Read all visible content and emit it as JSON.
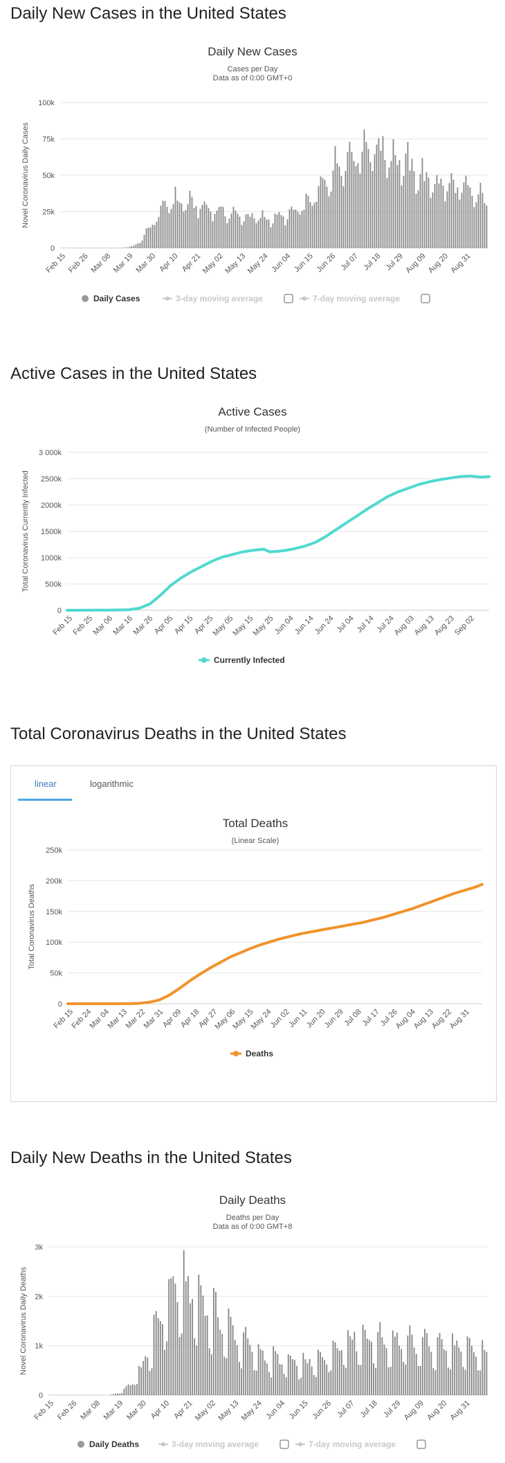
{
  "colors": {
    "bar": "#888888",
    "teal": "#4fd9d0",
    "orange": "#f0932b",
    "grid": "#e6e6e6",
    "axis": "#ccc",
    "disabled": "#c8c8c8",
    "tab_active": "#3b7bbf"
  },
  "icons": {
    "legend_marker": "circle",
    "checkbox": "checkbox"
  },
  "sections": {
    "daily_cases": "Daily New Cases in the United States",
    "active_cases": "Active Cases in the United States",
    "total_deaths": "Total Coronavirus Deaths in the United States",
    "daily_deaths": "Daily New Deaths in the United States"
  },
  "tabs": {
    "linear": "linear",
    "log": "logarithmic"
  },
  "chart_data": [
    {
      "id": "daily_cases",
      "type": "bar",
      "title": "Daily New Cases",
      "subtitle1": "Cases per Day",
      "subtitle2": "Data as of 0:00 GMT+0",
      "ylabel": "Novel Coronavirus Daily Cases",
      "ylim": [
        0,
        100000
      ],
      "yticks": [
        0,
        25000,
        50000,
        75000,
        100000
      ],
      "ytick_labels": [
        "0",
        "25k",
        "50k",
        "75k",
        "100k"
      ],
      "xticks": [
        "Feb 15",
        "Feb 26",
        "Mar 08",
        "Mar 19",
        "Mar 30",
        "Apr 10",
        "Apr 21",
        "May 02",
        "May 13",
        "May 24",
        "Jun 04",
        "Jun 15",
        "Jun 26",
        "Jul 07",
        "Jul 18",
        "Jul 29",
        "Aug 09",
        "Aug 20",
        "Aug 31"
      ],
      "legend": [
        "Daily Cases",
        "3-day moving average",
        "7-day moving average"
      ],
      "knots": [
        [
          0,
          0
        ],
        [
          28,
          0
        ],
        [
          31,
          300
        ],
        [
          34,
          1000
        ],
        [
          37,
          3000
        ],
        [
          40,
          8000
        ],
        [
          43,
          15000
        ],
        [
          46,
          20000
        ],
        [
          49,
          27000
        ],
        [
          52,
          31000
        ],
        [
          55,
          32000
        ],
        [
          58,
          31000
        ],
        [
          61,
          30000
        ],
        [
          64,
          29000
        ],
        [
          67,
          28000
        ],
        [
          70,
          27000
        ],
        [
          73,
          26000
        ],
        [
          76,
          25000
        ],
        [
          79,
          24000
        ],
        [
          82,
          23000
        ],
        [
          85,
          22000
        ],
        [
          88,
          21500
        ],
        [
          91,
          21000
        ],
        [
          94,
          20500
        ],
        [
          97,
          20000
        ],
        [
          100,
          20000
        ],
        [
          103,
          20500
        ],
        [
          106,
          21000
        ],
        [
          109,
          22000
        ],
        [
          112,
          24000
        ],
        [
          115,
          26000
        ],
        [
          118,
          29000
        ],
        [
          121,
          33000
        ],
        [
          124,
          38000
        ],
        [
          127,
          44000
        ],
        [
          130,
          50000
        ],
        [
          133,
          55000
        ],
        [
          136,
          60000
        ],
        [
          139,
          63000
        ],
        [
          142,
          65000
        ],
        [
          145,
          67000
        ],
        [
          148,
          68000
        ],
        [
          151,
          68000
        ],
        [
          154,
          67000
        ],
        [
          157,
          65000
        ],
        [
          160,
          62000
        ],
        [
          163,
          59000
        ],
        [
          166,
          56000
        ],
        [
          169,
          53000
        ],
        [
          172,
          50000
        ],
        [
          175,
          47000
        ],
        [
          178,
          45000
        ],
        [
          181,
          44000
        ],
        [
          184,
          43000
        ],
        [
          187,
          42000
        ],
        [
          190,
          41000
        ],
        [
          193,
          40000
        ],
        [
          196,
          38000
        ],
        [
          199,
          36000
        ],
        [
          202,
          34000
        ],
        [
          205,
          32000
        ]
      ],
      "weekly": [
        1.08,
        1.04,
        0.96,
        0.8,
        0.86,
        1.06,
        1.2
      ],
      "n": 206
    },
    {
      "id": "active_cases",
      "type": "line",
      "title": "Active Cases",
      "subtitle1": "(Number of Infected People)",
      "ylabel": "Total Coronavirus Currently Infected",
      "ylim": [
        0,
        3000000
      ],
      "yticks": [
        0,
        500000,
        1000000,
        1500000,
        2000000,
        2500000,
        3000000
      ],
      "ytick_labels": [
        "0",
        "500k",
        "1000k",
        "1500k",
        "2000k",
        "2500k",
        "3 000k"
      ],
      "xticks": [
        "Feb 15",
        "Feb 25",
        "Mar 06",
        "Mar 16",
        "Mar 26",
        "Apr 05",
        "Apr 15",
        "Apr 25",
        "May 05",
        "May 15",
        "May 25",
        "Jun 04",
        "Jun 14",
        "Jun 24",
        "Jul 04",
        "Jul 14",
        "Jul 24",
        "Aug 03",
        "Aug 13",
        "Aug 23",
        "Sep 02"
      ],
      "legend": [
        "Currently Infected"
      ],
      "points": [
        [
          0,
          0
        ],
        [
          20,
          2000
        ],
        [
          30,
          10000
        ],
        [
          35,
          40000
        ],
        [
          40,
          120000
        ],
        [
          45,
          280000
        ],
        [
          50,
          470000
        ],
        [
          55,
          610000
        ],
        [
          60,
          730000
        ],
        [
          65,
          830000
        ],
        [
          70,
          930000
        ],
        [
          75,
          1010000
        ],
        [
          80,
          1060000
        ],
        [
          85,
          1110000
        ],
        [
          90,
          1140000
        ],
        [
          95,
          1160000
        ],
        [
          98,
          1110000
        ],
        [
          102,
          1120000
        ],
        [
          106,
          1140000
        ],
        [
          110,
          1170000
        ],
        [
          115,
          1220000
        ],
        [
          120,
          1290000
        ],
        [
          125,
          1400000
        ],
        [
          130,
          1530000
        ],
        [
          135,
          1660000
        ],
        [
          140,
          1790000
        ],
        [
          145,
          1920000
        ],
        [
          150,
          2040000
        ],
        [
          155,
          2160000
        ],
        [
          160,
          2250000
        ],
        [
          165,
          2320000
        ],
        [
          170,
          2390000
        ],
        [
          175,
          2440000
        ],
        [
          180,
          2480000
        ],
        [
          185,
          2510000
        ],
        [
          190,
          2540000
        ],
        [
          195,
          2550000
        ],
        [
          200,
          2530000
        ],
        [
          204,
          2540000
        ]
      ],
      "xmax": 204
    },
    {
      "id": "total_deaths",
      "type": "line",
      "title": "Total Deaths",
      "subtitle1": "(Linear Scale)",
      "ylabel": "Total Coronavirus Deaths",
      "ylim": [
        0,
        250000
      ],
      "yticks": [
        0,
        50000,
        100000,
        150000,
        200000,
        250000
      ],
      "ytick_labels": [
        "0",
        "50k",
        "100k",
        "150k",
        "200k",
        "250k"
      ],
      "xticks": [
        "Feb 15",
        "Feb 24",
        "Mar 04",
        "Mar 13",
        "Mar 22",
        "Mar 31",
        "Apr 09",
        "Apr 18",
        "Apr 27",
        "May 06",
        "May 15",
        "May 24",
        "Jun 02",
        "Jun 11",
        "Jun 20",
        "Jun 29",
        "Jul 08",
        "Jul 17",
        "Jul 26",
        "Aug 04",
        "Aug 13",
        "Aug 22",
        "Aug 31"
      ],
      "legend": [
        "Deaths"
      ],
      "points": [
        [
          0,
          0
        ],
        [
          30,
          100
        ],
        [
          35,
          600
        ],
        [
          40,
          2500
        ],
        [
          45,
          6000
        ],
        [
          50,
          14000
        ],
        [
          55,
          25000
        ],
        [
          60,
          37000
        ],
        [
          65,
          48000
        ],
        [
          70,
          58000
        ],
        [
          75,
          67000
        ],
        [
          80,
          76000
        ],
        [
          85,
          83000
        ],
        [
          90,
          90000
        ],
        [
          95,
          96000
        ],
        [
          100,
          101000
        ],
        [
          105,
          106000
        ],
        [
          110,
          110000
        ],
        [
          115,
          114000
        ],
        [
          120,
          117000
        ],
        [
          125,
          120000
        ],
        [
          130,
          123000
        ],
        [
          135,
          126000
        ],
        [
          140,
          129000
        ],
        [
          145,
          132000
        ],
        [
          150,
          136000
        ],
        [
          155,
          140000
        ],
        [
          160,
          145000
        ],
        [
          165,
          150000
        ],
        [
          170,
          155000
        ],
        [
          175,
          161000
        ],
        [
          180,
          167000
        ],
        [
          185,
          173000
        ],
        [
          190,
          179000
        ],
        [
          195,
          184000
        ],
        [
          200,
          189000
        ],
        [
          204,
          194000
        ]
      ],
      "xmax": 204
    },
    {
      "id": "daily_deaths",
      "type": "bar",
      "title": "Daily Deaths",
      "subtitle1": "Deaths per Day",
      "subtitle2": "Data as of 0:00 GMT+8",
      "ylabel": "Novel Coronavirus Daily Deaths",
      "ylim": [
        0,
        3000
      ],
      "yticks": [
        0,
        1000,
        2000,
        3000
      ],
      "ytick_labels": [
        "0",
        "1k",
        "2k",
        "3k"
      ],
      "xticks": [
        "Feb 15",
        "Feb 26",
        "Mar 08",
        "Mar 19",
        "Mar 30",
        "Apr 10",
        "Apr 21",
        "May 02",
        "May 13",
        "May 24",
        "Jun 04",
        "Jun 15",
        "Jun 26",
        "Jul 07",
        "Jul 18",
        "Jul 29",
        "Aug 09",
        "Aug 20",
        "Aug 31"
      ],
      "legend": [
        "Daily Deaths",
        "3-day moving average",
        "7-day moving average"
      ],
      "knots": [
        [
          0,
          0
        ],
        [
          28,
          0
        ],
        [
          33,
          50
        ],
        [
          38,
          200
        ],
        [
          43,
          500
        ],
        [
          48,
          1000
        ],
        [
          53,
          1600
        ],
        [
          56,
          1900
        ],
        [
          59,
          2100
        ],
        [
          62,
          2050
        ],
        [
          65,
          2000
        ],
        [
          68,
          1900
        ],
        [
          71,
          1800
        ],
        [
          74,
          1700
        ],
        [
          77,
          1550
        ],
        [
          80,
          1400
        ],
        [
          83,
          1300
        ],
        [
          86,
          1200
        ],
        [
          89,
          1100
        ],
        [
          92,
          1000
        ],
        [
          95,
          900
        ],
        [
          98,
          800
        ],
        [
          101,
          750
        ],
        [
          104,
          700
        ],
        [
          107,
          680
        ],
        [
          110,
          650
        ],
        [
          113,
          620
        ],
        [
          116,
          600
        ],
        [
          119,
          600
        ],
        [
          122,
          620
        ],
        [
          125,
          650
        ],
        [
          128,
          700
        ],
        [
          131,
          800
        ],
        [
          134,
          900
        ],
        [
          137,
          1000
        ],
        [
          140,
          1050
        ],
        [
          143,
          1100
        ],
        [
          146,
          1100
        ],
        [
          149,
          1100
        ],
        [
          152,
          1080
        ],
        [
          155,
          1060
        ],
        [
          158,
          1050
        ],
        [
          161,
          1040
        ],
        [
          164,
          1030
        ],
        [
          167,
          1020
        ],
        [
          170,
          1010
        ],
        [
          173,
          1000
        ],
        [
          176,
          990
        ],
        [
          179,
          980
        ],
        [
          182,
          960
        ],
        [
          185,
          940
        ],
        [
          188,
          920
        ],
        [
          191,
          900
        ],
        [
          194,
          880
        ],
        [
          197,
          860
        ],
        [
          200,
          840
        ],
        [
          205,
          800
        ]
      ],
      "weekly": [
        1.3,
        1.25,
        1.15,
        1.05,
        0.9,
        0.6,
        0.55
      ],
      "n": 206
    }
  ]
}
